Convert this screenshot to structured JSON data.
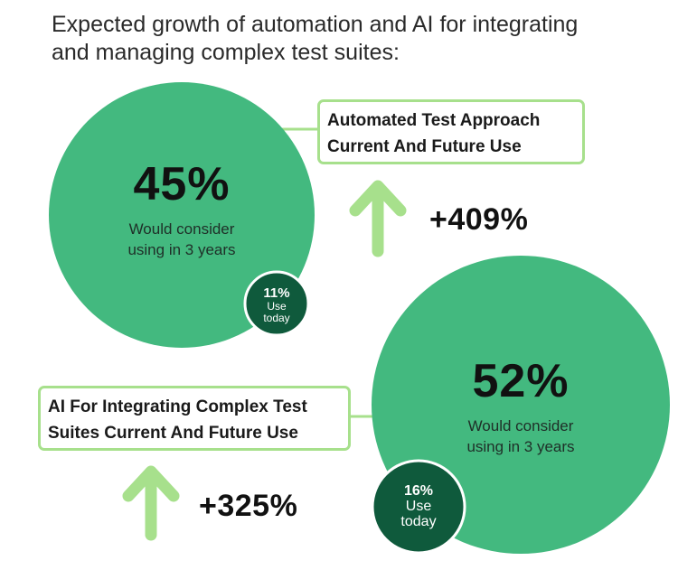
{
  "title_lines": [
    "Expected growth of automation and AI for integrating",
    "and managing complex test suites:"
  ],
  "chart_data": [
    {
      "type": "bubble",
      "title_lines": [
        "Automated Test Approach",
        "Current And Future Use"
      ],
      "future_percent": 45,
      "future_label": "45%",
      "future_desc_lines": [
        "Would consider",
        "using in 3 years"
      ],
      "today_percent": 11,
      "today_label": "11%",
      "today_desc_lines": [
        "Use",
        "today"
      ],
      "growth": "+409%"
    },
    {
      "type": "bubble",
      "title_lines": [
        "AI For Integrating Complex Test",
        "Suites Current And Future Use"
      ],
      "future_percent": 52,
      "future_label": "52%",
      "future_desc_lines": [
        "Would consider",
        "using in 3 years"
      ],
      "today_percent": 16,
      "today_label": "16%",
      "today_desc_lines": [
        "Use",
        "today"
      ],
      "growth": "+325%"
    }
  ],
  "colors": {
    "big_circle": "#43b97f",
    "small_circle": "#0f5a3c",
    "border_and_arrow": "#a7e08c"
  }
}
